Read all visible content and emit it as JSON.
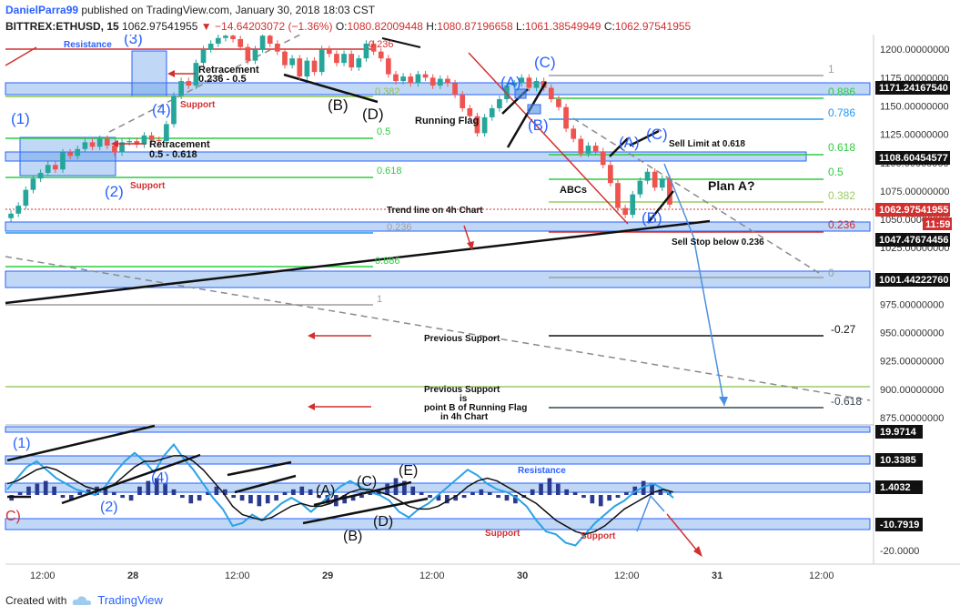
{
  "header": {
    "author": "DanielParra99",
    "published_text": "published on TradingView.com, January 30, 2018 18:03 CST",
    "symbol": "BITTREX:ETHUSD, 15",
    "last": "1062.97541955",
    "change": "−14.64203072 (−1.36%)",
    "o_label": "O:",
    "o": "1080.82009448",
    "h_label": "H:",
    "h": "1080.87196658",
    "l_label": "L:",
    "l": "1061.38549949",
    "c_label": "C:",
    "c": "1062.97541955"
  },
  "footer": {
    "created_with": "Created with",
    "brand": "TradingView"
  },
  "colors": {
    "up": "#26a69a",
    "down": "#ef5350",
    "accent": "#2962ff",
    "zone": "#4a90e2"
  },
  "price_axis": {
    "ticks": [
      "1200.00000000",
      "1175.00000000",
      "1150.00000000",
      "1125.00000000",
      "1100.00000000",
      "1075.00000000",
      "1050.00000000",
      "1025.00000000",
      "1000.00000000",
      "975.00000000",
      "950.00000000",
      "925.00000000",
      "900.00000000",
      "875.00000000"
    ],
    "markers": [
      "1171.24167540",
      "1108.60454577",
      "1062.97541955",
      "1047.47674456",
      "1001.44222760"
    ],
    "countdown": "11:59"
  },
  "osc_axis": {
    "markers": [
      "19.9714",
      "10.3385",
      "1.4032",
      "-10.7919"
    ],
    "ticks": [
      "-20.0000"
    ]
  },
  "time_axis": {
    "ticks": [
      "12:00",
      "28",
      "12:00",
      "29",
      "12:00",
      "30",
      "12:00",
      "31",
      "12:00"
    ]
  },
  "annotations": {
    "resistance": "Resistance",
    "retracement_1": "Retracement",
    "retracement_1b": "0.236 - 0.5",
    "retracement_2": "Retracement",
    "retracement_2b": "0.5 - 0.618",
    "support_1": "Support",
    "support_2": "Support",
    "w1": "(1)",
    "w2": "(2)",
    "w4": "(4)",
    "w3": "(3)",
    "wb": "(B)",
    "wd": "(D)",
    "wa": "(A)",
    "wc": "(C)",
    "wb2": "(B)",
    "wa2": "(A)",
    "wc2": "(C)",
    "wb3": "(B)",
    "running_flag": "Running Flag",
    "abcs": "ABCs",
    "plan_a": "Plan A?",
    "sell_limit": "Sell Limit at 0.618",
    "sell_stop": "Sell Stop below 0.236",
    "trend_line": "Trend line on 4h Chart",
    "prev_support": "Previous Support",
    "prev_support2": "Previous Support",
    "prev_support2b": "is",
    "prev_support2c": "point B of Running Flag",
    "prev_support2d": "in 4h Chart",
    "osc_w1": "(1)",
    "osc_w2": "(2)",
    "osc_w4": "(4)",
    "osc_c": "C)",
    "osc_a": "(A)",
    "osc_c2": "(C)",
    "osc_e": "(E)",
    "osc_b": "(B)",
    "osc_d": "(D)",
    "osc_resistance": "Resistance",
    "osc_support1": "Support",
    "osc_support2": "Support"
  },
  "fib_left": {
    "l382": "0.382",
    "l5": "0.5",
    "l618": "0.618",
    "l236": "0.236",
    "l886": "0.886",
    "l1": "1",
    "l0_top": "0.236"
  },
  "fib_right": {
    "l1": "1",
    "l886": "0.886",
    "l786": "0.786",
    "l618": "0.618",
    "l5": "0.5",
    "l382": "0.382",
    "l236": "0.236",
    "l0": "0",
    "m027": "-0.27",
    "m0618": "-0.618"
  },
  "chart_data": {
    "type": "candlestick",
    "title": "",
    "ylim": [
      871,
      1213
    ],
    "osc_ylim": [
      -24,
      24
    ],
    "candles_close": [
      1055,
      1062,
      1076,
      1086,
      1091,
      1098,
      1094,
      1109,
      1106,
      1112,
      1118,
      1114,
      1121,
      1115,
      1109,
      1118,
      1119,
      1116,
      1124,
      1120,
      1119,
      1134,
      1159,
      1172,
      1168,
      1188,
      1200,
      1205,
      1210,
      1212,
      1209,
      1202,
      1190,
      1200,
      1212,
      1205,
      1198,
      1186,
      1192,
      1176,
      1190,
      1180,
      1200,
      1196,
      1188,
      1196,
      1184,
      1192,
      1205,
      1198,
      1192,
      1178,
      1172,
      1176,
      1170,
      1178,
      1175,
      1168,
      1174,
      1170,
      1160,
      1148,
      1141,
      1126,
      1140,
      1148,
      1156,
      1168,
      1170,
      1175,
      1166,
      1172,
      1166,
      1156,
      1149,
      1130,
      1121,
      1108,
      1115,
      1110,
      1098,
      1082,
      1060,
      1054,
      1072,
      1084,
      1092,
      1078,
      1086,
      1063
    ],
    "histogram": [
      -2,
      1,
      3,
      4,
      5,
      3,
      -1,
      -2,
      1,
      2,
      3,
      2,
      1,
      -1,
      -2,
      3,
      5,
      6,
      4,
      2,
      -1,
      -3,
      -2,
      1,
      3,
      2,
      -1,
      -2,
      -3,
      -4,
      -3,
      -2,
      1,
      2,
      3,
      2,
      -1,
      -3,
      -4,
      -3,
      -2,
      -1,
      1,
      2,
      4,
      6,
      5,
      3,
      1,
      -1,
      -2,
      -3,
      -2,
      -1,
      1,
      2,
      1,
      -1,
      -2,
      -3,
      -1,
      2,
      4,
      6,
      4,
      2,
      1,
      -1,
      -3,
      -4,
      -2,
      -1,
      1,
      3,
      5,
      4,
      2,
      1
    ],
    "osc_blue": [
      2,
      6,
      10,
      12,
      9,
      6,
      4,
      2,
      1,
      0,
      3,
      8,
      12,
      15,
      12,
      8,
      14,
      18,
      13,
      9,
      4,
      -1,
      -5,
      -11,
      -10,
      -7,
      -9,
      -6,
      -3,
      -1,
      -3,
      -6,
      -3,
      0,
      3,
      5,
      3,
      1,
      0,
      -2,
      -6,
      -8,
      -5,
      -3,
      0,
      3,
      6,
      9,
      7,
      4,
      2,
      1,
      -1,
      -4,
      -9,
      -13,
      -14,
      -17,
      -18,
      -14,
      -10,
      -7,
      -4,
      -2,
      1,
      3,
      4,
      2,
      -1
    ],
    "osc_black": [
      4,
      5,
      7,
      9,
      10,
      9,
      7,
      5,
      3,
      2,
      2,
      4,
      7,
      10,
      12,
      12,
      13,
      14,
      14,
      12,
      9,
      5,
      1,
      -4,
      -7,
      -8,
      -9,
      -8,
      -6,
      -4,
      -3,
      -4,
      -4,
      -3,
      -1,
      1,
      2,
      2,
      1,
      0,
      -2,
      -4,
      -5,
      -5,
      -4,
      -2,
      0,
      3,
      5,
      6,
      5,
      3,
      1,
      -1,
      -3,
      -6,
      -9,
      -11,
      -13,
      -14,
      -13,
      -11,
      -8,
      -5,
      -3,
      -1,
      1,
      2,
      1
    ]
  }
}
